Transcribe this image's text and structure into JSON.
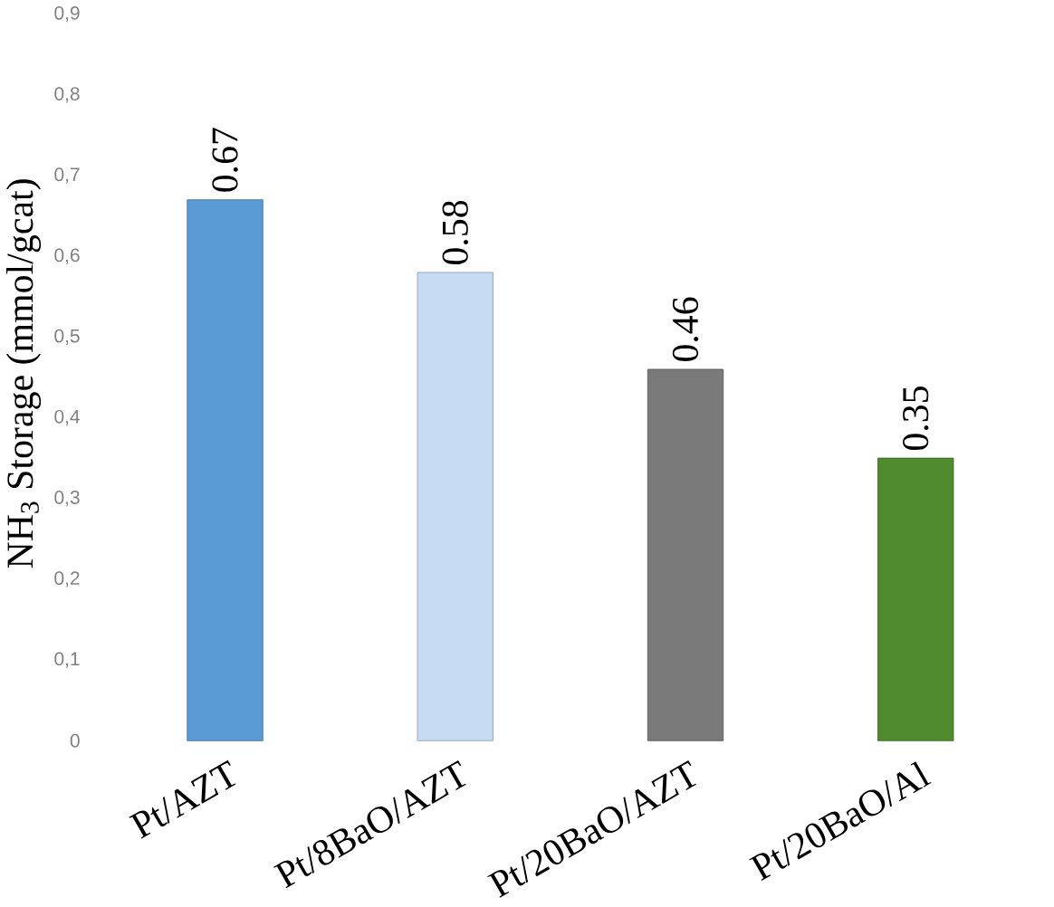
{
  "chart_data": {
    "type": "bar",
    "ylabel": "NH$_{3}$ Storage (mmol/gcat)",
    "categories": [
      "Pt/AZT",
      "Pt/8BaO/AZT",
      "Pt/20BaO/AZT",
      "Pt/20BaO/Al"
    ],
    "values": [
      0.67,
      0.58,
      0.46,
      0.35
    ],
    "colors": [
      "#5b9bd5",
      "#c5dcf2",
      "#7a7a7a",
      "#4f8a2e"
    ],
    "data_labels": true,
    "ylim": [
      0,
      0.9
    ],
    "yticks": [
      {
        "value": 0,
        "label": "0"
      },
      {
        "value": 0.1,
        "label": "0,1"
      },
      {
        "value": 0.2,
        "label": "0,2"
      },
      {
        "value": 0.3,
        "label": "0,3"
      },
      {
        "value": 0.4,
        "label": "0,4"
      },
      {
        "value": 0.5,
        "label": "0,5"
      },
      {
        "value": 0.6,
        "label": "0,6"
      },
      {
        "value": 0.7,
        "label": "0,7"
      },
      {
        "value": 0.8,
        "label": "0,8"
      },
      {
        "value": 0.9,
        "label": "0,9"
      }
    ]
  }
}
